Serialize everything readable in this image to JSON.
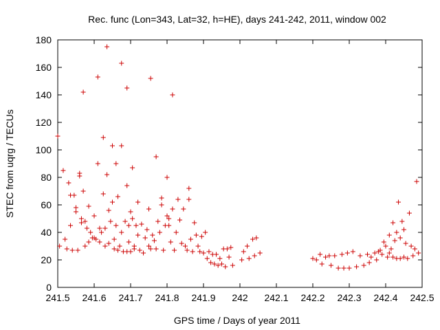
{
  "chart_data": {
    "type": "scatter",
    "title": "Rec. func (Lon=343, Lat=32, h=HE), days 241-242, 2011, window 002",
    "xlabel": "GPS time / Days of year 2011",
    "ylabel": "STEC from uqrg / TECUs",
    "xlim": [
      241.5,
      242.5
    ],
    "ylim": [
      0,
      180
    ],
    "x_ticks": [
      "241.5",
      "241.6",
      "241.7",
      "241.8",
      "241.9",
      "242",
      "242.1",
      "242.2",
      "242.3",
      "242.4",
      "242.5"
    ],
    "y_ticks": [
      "0",
      "20",
      "40",
      "60",
      "80",
      "100",
      "120",
      "140",
      "160",
      "180"
    ],
    "grid": false,
    "legend": "none",
    "marker": "+",
    "color": "#cc0000",
    "series": [
      {
        "points": [
          [
            241.5,
            110
          ],
          [
            241.505,
            30
          ],
          [
            241.515,
            85
          ],
          [
            241.52,
            35
          ],
          [
            241.525,
            28
          ],
          [
            241.53,
            76
          ],
          [
            241.535,
            45
          ],
          [
            241.535,
            67
          ],
          [
            241.54,
            27
          ],
          [
            241.545,
            67
          ],
          [
            241.55,
            58
          ],
          [
            241.55,
            55
          ],
          [
            241.555,
            27
          ],
          [
            241.56,
            83
          ],
          [
            241.56,
            81
          ],
          [
            241.565,
            50
          ],
          [
            241.565,
            47
          ],
          [
            241.57,
            142
          ],
          [
            241.57,
            70
          ],
          [
            241.575,
            30
          ],
          [
            241.575,
            48
          ],
          [
            241.58,
            43
          ],
          [
            241.585,
            59
          ],
          [
            241.585,
            33
          ],
          [
            241.59,
            40
          ],
          [
            241.595,
            36
          ],
          [
            241.6,
            52
          ],
          [
            241.6,
            36
          ],
          [
            241.605,
            35
          ],
          [
            241.61,
            153
          ],
          [
            241.61,
            90
          ],
          [
            241.615,
            43
          ],
          [
            241.615,
            33
          ],
          [
            241.62,
            40
          ],
          [
            241.625,
            109
          ],
          [
            241.625,
            68
          ],
          [
            241.63,
            30
          ],
          [
            241.63,
            43
          ],
          [
            241.635,
            175
          ],
          [
            241.635,
            82
          ],
          [
            241.64,
            56
          ],
          [
            241.64,
            32
          ],
          [
            241.645,
            48
          ],
          [
            241.65,
            103
          ],
          [
            241.65,
            62
          ],
          [
            241.655,
            28
          ],
          [
            241.655,
            35
          ],
          [
            241.66,
            90
          ],
          [
            241.66,
            45
          ],
          [
            241.665,
            66
          ],
          [
            241.665,
            27
          ],
          [
            241.67,
            30
          ],
          [
            241.675,
            163
          ],
          [
            241.675,
            103
          ],
          [
            241.675,
            40
          ],
          [
            241.68,
            26
          ],
          [
            241.685,
            48
          ],
          [
            241.69,
            145
          ],
          [
            241.69,
            74
          ],
          [
            241.69,
            26
          ],
          [
            241.695,
            45
          ],
          [
            241.695,
            33
          ],
          [
            241.7,
            55
          ],
          [
            241.7,
            26
          ],
          [
            241.705,
            87
          ],
          [
            241.705,
            50
          ],
          [
            241.71,
            28
          ],
          [
            241.71,
            30
          ],
          [
            241.715,
            45
          ],
          [
            241.72,
            62
          ],
          [
            241.72,
            38
          ],
          [
            241.725,
            27
          ],
          [
            241.73,
            46
          ],
          [
            241.735,
            25
          ],
          [
            241.74,
            36
          ],
          [
            241.745,
            42
          ],
          [
            241.75,
            57
          ],
          [
            241.75,
            30
          ],
          [
            241.755,
            152
          ],
          [
            241.755,
            28
          ],
          [
            241.76,
            38
          ],
          [
            241.765,
            34
          ],
          [
            241.77,
            95
          ],
          [
            241.77,
            28
          ],
          [
            241.775,
            48
          ],
          [
            241.78,
            40
          ],
          [
            241.785,
            65
          ],
          [
            241.785,
            60
          ],
          [
            241.79,
            27
          ],
          [
            241.795,
            45
          ],
          [
            241.8,
            80
          ],
          [
            241.8,
            52
          ],
          [
            241.805,
            50
          ],
          [
            241.805,
            45
          ],
          [
            241.81,
            33
          ],
          [
            241.815,
            140
          ],
          [
            241.815,
            57
          ],
          [
            241.82,
            27
          ],
          [
            241.825,
            40
          ],
          [
            241.83,
            64
          ],
          [
            241.835,
            49
          ],
          [
            241.84,
            32
          ],
          [
            241.845,
            57
          ],
          [
            241.85,
            30
          ],
          [
            241.855,
            27
          ],
          [
            241.86,
            72
          ],
          [
            241.86,
            64
          ],
          [
            241.865,
            35
          ],
          [
            241.87,
            26
          ],
          [
            241.875,
            47
          ],
          [
            241.88,
            38
          ],
          [
            241.885,
            30
          ],
          [
            241.89,
            26
          ],
          [
            241.895,
            37
          ],
          [
            241.9,
            25
          ],
          [
            241.905,
            40
          ],
          [
            241.91,
            21
          ],
          [
            241.915,
            26
          ],
          [
            241.92,
            18
          ],
          [
            241.925,
            24
          ],
          [
            241.93,
            17
          ],
          [
            241.935,
            24
          ],
          [
            241.94,
            16
          ],
          [
            241.945,
            21
          ],
          [
            241.95,
            17
          ],
          [
            241.955,
            28
          ],
          [
            241.96,
            15
          ],
          [
            241.965,
            28
          ],
          [
            241.97,
            22
          ],
          [
            241.975,
            29
          ],
          [
            241.98,
            16
          ],
          [
            242.005,
            20
          ],
          [
            242.01,
            26
          ],
          [
            242.02,
            30
          ],
          [
            242.025,
            21
          ],
          [
            242.035,
            35
          ],
          [
            242.04,
            23
          ],
          [
            242.045,
            36
          ],
          [
            242.055,
            25
          ],
          [
            242.2,
            21
          ],
          [
            242.21,
            20
          ],
          [
            242.22,
            24
          ],
          [
            242.225,
            17
          ],
          [
            242.235,
            22
          ],
          [
            242.245,
            23
          ],
          [
            242.25,
            16
          ],
          [
            242.26,
            23
          ],
          [
            242.27,
            14
          ],
          [
            242.28,
            24
          ],
          [
            242.285,
            14
          ],
          [
            242.295,
            25
          ],
          [
            242.3,
            14
          ],
          [
            242.31,
            26
          ],
          [
            242.32,
            15
          ],
          [
            242.33,
            23
          ],
          [
            242.34,
            16
          ],
          [
            242.35,
            24
          ],
          [
            242.355,
            18
          ],
          [
            242.36,
            22
          ],
          [
            242.37,
            25
          ],
          [
            242.375,
            20
          ],
          [
            242.38,
            26
          ],
          [
            242.385,
            27
          ],
          [
            242.39,
            24
          ],
          [
            242.395,
            33
          ],
          [
            242.4,
            30
          ],
          [
            242.405,
            22
          ],
          [
            242.41,
            38
          ],
          [
            242.415,
            28
          ],
          [
            242.42,
            47
          ],
          [
            242.425,
            34
          ],
          [
            242.43,
            40
          ],
          [
            242.435,
            62
          ],
          [
            242.44,
            36
          ],
          [
            242.445,
            48
          ],
          [
            242.45,
            42
          ],
          [
            242.455,
            32
          ],
          [
            242.46,
            21
          ],
          [
            242.465,
            54
          ],
          [
            242.47,
            30
          ],
          [
            242.475,
            23
          ],
          [
            242.48,
            28
          ],
          [
            242.485,
            77
          ],
          [
            242.49,
            25
          ],
          [
            242.43,
            21
          ],
          [
            242.44,
            21
          ],
          [
            242.45,
            22
          ],
          [
            242.42,
            22
          ],
          [
            242.41,
            25
          ]
        ]
      }
    ]
  }
}
